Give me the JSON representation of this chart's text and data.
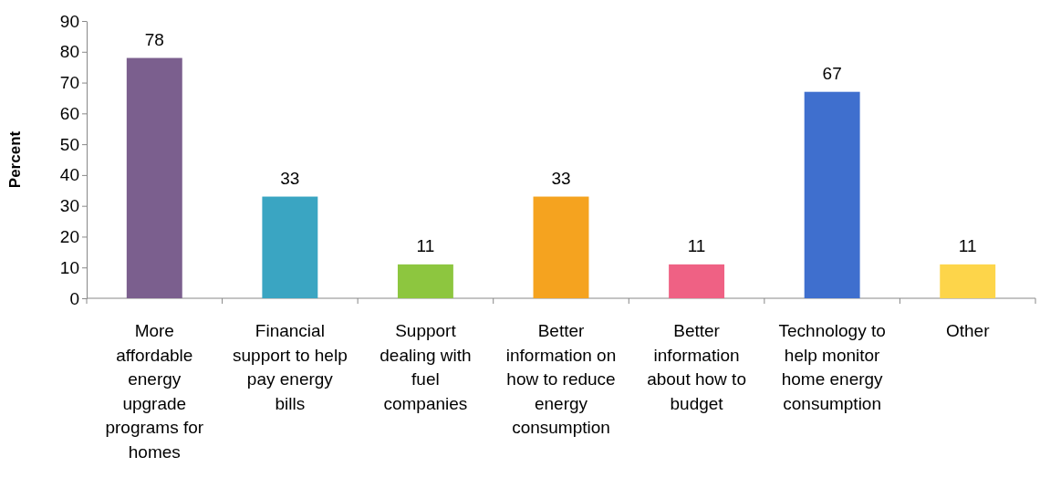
{
  "chart_data": {
    "type": "bar",
    "ylabel": "Percent",
    "categories": [
      "More affordable energy upgrade programs for homes",
      "Financial support to help pay energy bills",
      "Support dealing with fuel companies",
      "Better information on how to reduce energy consumption",
      "Better information about how to budget",
      "Technology to help monitor home energy consumption",
      "Other"
    ],
    "values": [
      78,
      33,
      11,
      33,
      11,
      67,
      11
    ],
    "colors": [
      "#7b5f8e",
      "#3aa5c2",
      "#8dc63f",
      "#f5a31f",
      "#ef6184",
      "#3f6fce",
      "#fdd54a"
    ],
    "ylim": [
      0,
      90
    ],
    "yticks": [
      0,
      10,
      20,
      30,
      40,
      50,
      60,
      70,
      80,
      90
    ],
    "data_labels": true
  }
}
